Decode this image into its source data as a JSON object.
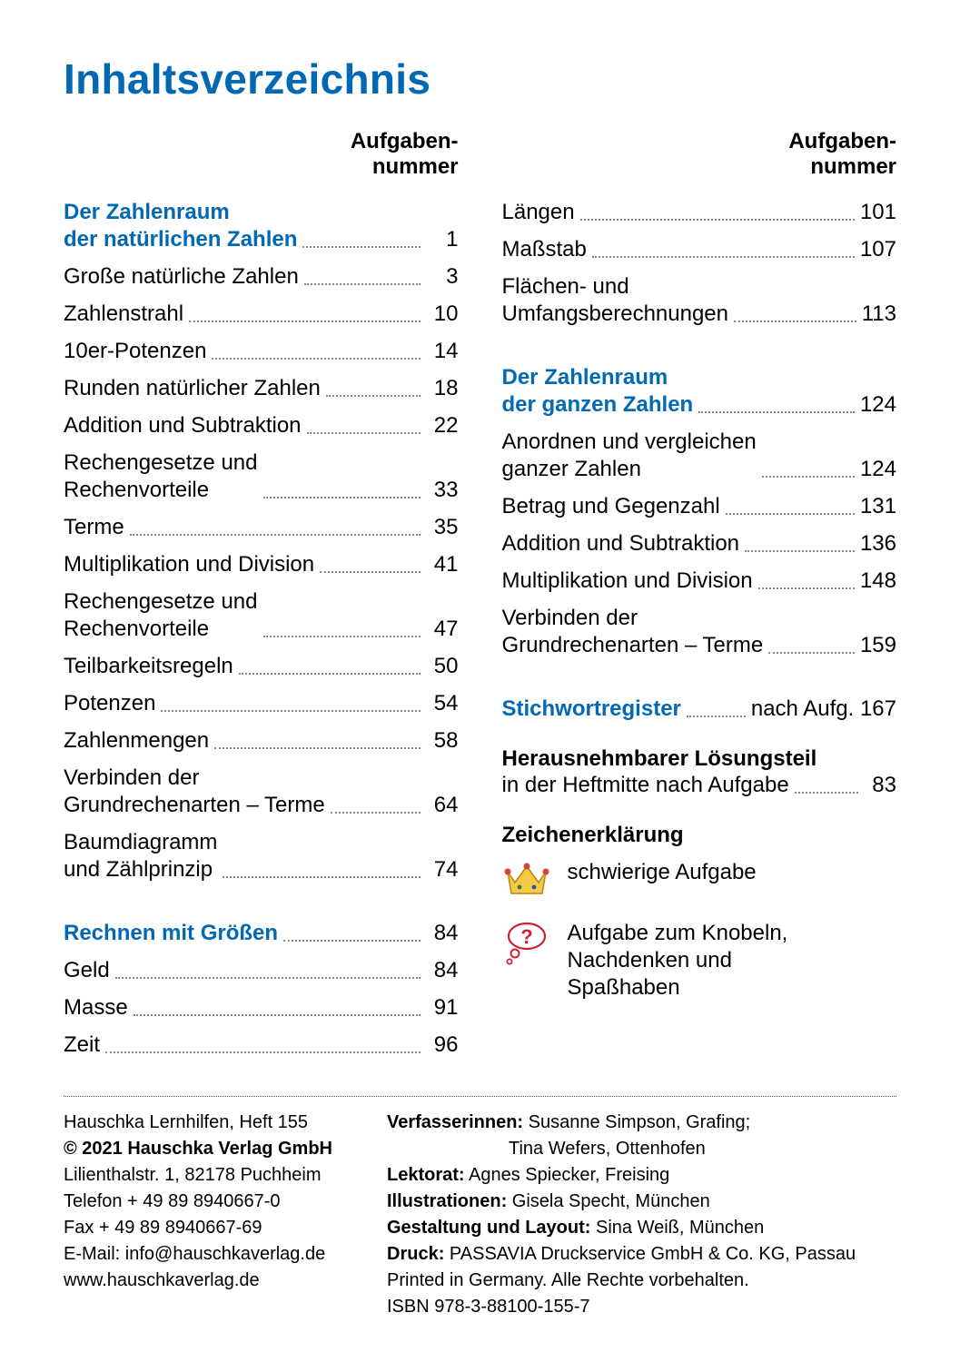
{
  "colors": {
    "accent": "#0068b4",
    "text": "#000000",
    "dots": "#888888",
    "bg": "#ffffff"
  },
  "typography": {
    "title_pt": 34,
    "body_pt": 18,
    "imprint_pt": 15
  },
  "title": "Inhaltsverzeichnis",
  "column_header": {
    "line1": "Aufgaben-",
    "line2": "nummer"
  },
  "left": [
    {
      "label": "Der Zahlenraum\nder natürlichen Zahlen",
      "num": "1",
      "section": true
    },
    {
      "label": "Große natürliche Zahlen",
      "num": "3"
    },
    {
      "label": "Zahlenstrahl",
      "num": "10"
    },
    {
      "label": "10er-Potenzen",
      "num": "14"
    },
    {
      "label": "Runden natürlicher Zahlen",
      "num": "18"
    },
    {
      "label": "Addition und Subtraktion",
      "num": "22"
    },
    {
      "label": "Rechengesetze und\nRechenvorteile",
      "num": "33"
    },
    {
      "label": "Terme",
      "num": "35"
    },
    {
      "label": "Multiplikation und Division",
      "num": "41"
    },
    {
      "label": "Rechengesetze und\nRechenvorteile",
      "num": "47"
    },
    {
      "label": "Teilbarkeitsregeln",
      "num": "50"
    },
    {
      "label": "Potenzen",
      "num": "54"
    },
    {
      "label": "Zahlenmengen",
      "num": "58"
    },
    {
      "label": "Verbinden der\nGrundrechenarten – Terme",
      "num": "64"
    },
    {
      "label": "Baumdiagramm\nund Zählprinzip",
      "num": "74"
    },
    {
      "label": "Rechnen mit Größen",
      "num": "84",
      "section": true,
      "gap": true
    },
    {
      "label": "Geld",
      "num": "84"
    },
    {
      "label": "Masse",
      "num": "91"
    },
    {
      "label": "Zeit",
      "num": "96"
    }
  ],
  "right": [
    {
      "label": "Längen",
      "num": "101"
    },
    {
      "label": "Maßstab",
      "num": "107"
    },
    {
      "label": "Flächen- und\nUmfangsberechnungen",
      "num": "113"
    },
    {
      "label": "Der Zahlenraum\nder ganzen Zahlen",
      "num": "124",
      "section": true,
      "gap": true
    },
    {
      "label": "Anordnen und vergleichen\nganzer Zahlen",
      "num": "124"
    },
    {
      "label": "Betrag und Gegenzahl",
      "num": "131"
    },
    {
      "label": "Addition und Subtraktion",
      "num": "136"
    },
    {
      "label": "Multiplikation und Division",
      "num": "148"
    },
    {
      "label": "Verbinden der\nGrundrechenarten – Terme",
      "num": "159"
    },
    {
      "label": "Stichwortregister",
      "num": "nach Aufg. 167",
      "section": true,
      "gap": true
    }
  ],
  "solution": {
    "bold": "Herausnehmbarer Lösungsteil",
    "line": "in der Heftmitte nach Aufgabe",
    "num": "83"
  },
  "legend": {
    "title": "Zeichenerklärung",
    "items": [
      {
        "icon": "crown-icon",
        "text": "schwierige Aufgabe"
      },
      {
        "icon": "thought-bubble-icon",
        "text": "Aufgabe zum Knobeln,\nNachdenken und\nSpaßhaben"
      }
    ]
  },
  "imprint": {
    "left": [
      "Hauschka Lernhilfen, Heft 155",
      "© 2021 Hauschka Verlag GmbH",
      "Lilienthalstr. 1, 82178 Puchheim",
      "Telefon + 49 89 8940667-0",
      "Fax + 49 89 8940667-69",
      "E-Mail: info@hauschkaverlag.de",
      "www.hauschkaverlag.de"
    ],
    "left_bold_idx": 1,
    "right": {
      "verfasserinnen": {
        "label": "Verfasserinnen:",
        "v1": "Susanne Simpson, Grafing;",
        "v2": "Tina Wefers, Ottenhofen"
      },
      "lektorat": {
        "label": "Lektorat:",
        "value": "Agnes Spiecker, Freising"
      },
      "illustrationen": {
        "label": "Illustrationen:",
        "value": "Gisela Specht, München"
      },
      "gestaltung": {
        "label": "Gestaltung und Layout:",
        "value": "Sina Weiß, München"
      },
      "druck": {
        "label": "Druck:",
        "value": "PASSAVIA Druckservice GmbH & Co. KG, Passau"
      },
      "printed": "Printed in Germany. Alle Rechte vorbehalten.",
      "isbn": "ISBN 978-3-88100-155-7"
    }
  }
}
